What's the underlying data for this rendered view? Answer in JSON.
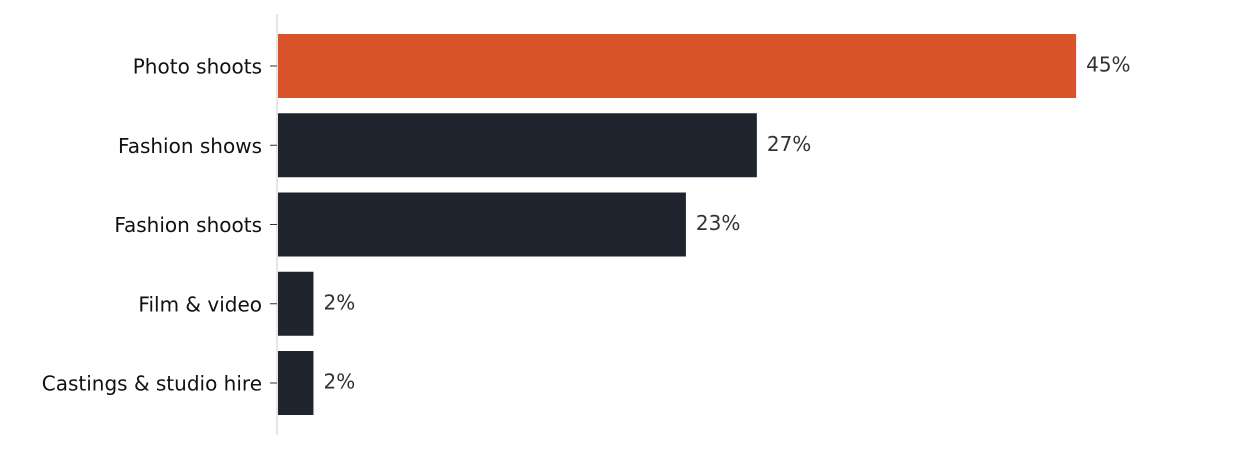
{
  "chart_data": {
    "type": "hbar",
    "categories": [
      "Photo shoots",
      "Fashion shows",
      "Fashion shoots",
      "Film & video",
      "Castings & studio hire"
    ],
    "values": [
      45,
      27,
      23,
      2,
      2
    ],
    "value_labels": [
      "45%",
      "27%",
      "23%",
      "2%",
      "2%"
    ],
    "colors": [
      "#d9532b",
      "#20242f",
      "#20242f",
      "#20242f",
      "#20242f"
    ],
    "xlim": [
      0,
      47.25
    ]
  }
}
